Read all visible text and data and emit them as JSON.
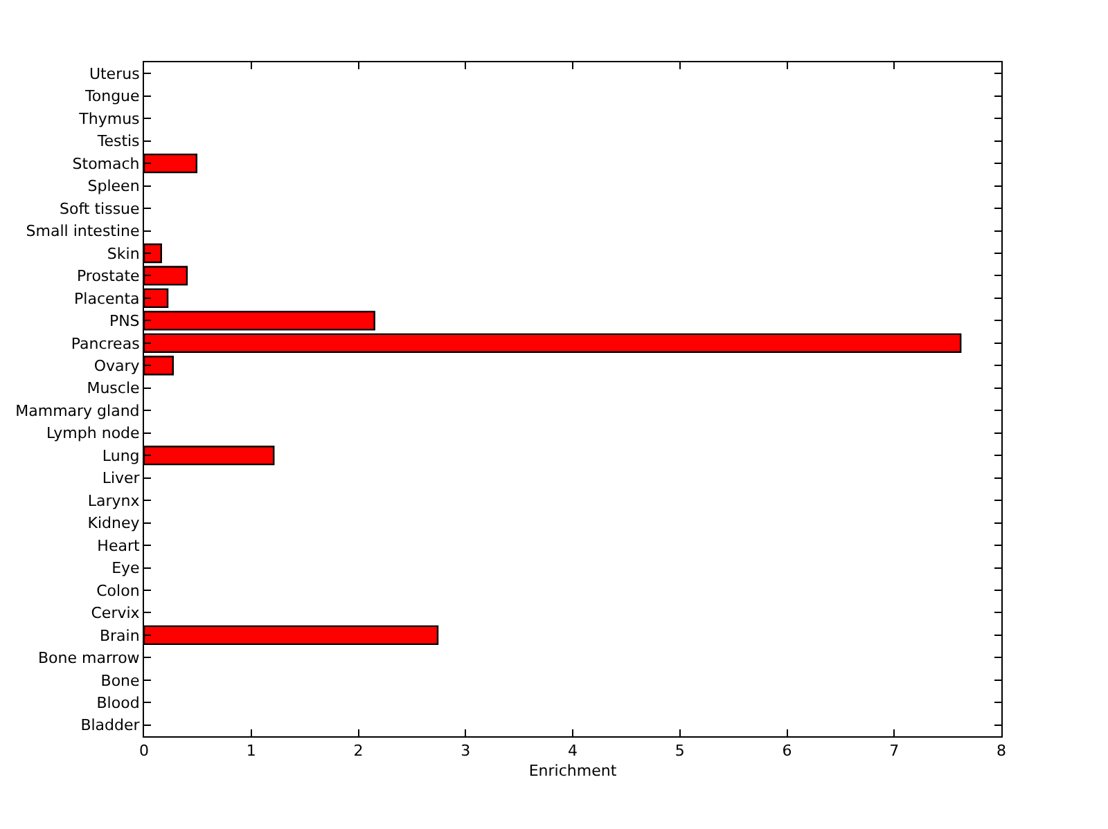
{
  "chart_data": {
    "type": "bar",
    "orientation": "horizontal",
    "xlabel": "Enrichment",
    "categories": [
      "Uterus",
      "Tongue",
      "Thymus",
      "Testis",
      "Stomach",
      "Spleen",
      "Soft tissue",
      "Small intestine",
      "Skin",
      "Prostate",
      "Placenta",
      "PNS",
      "Pancreas",
      "Ovary",
      "Muscle",
      "Mammary gland",
      "Lymph node",
      "Lung",
      "Liver",
      "Larynx",
      "Kidney",
      "Heart",
      "Eye",
      "Colon",
      "Cervix",
      "Brain",
      "Bone marrow",
      "Bone",
      "Blood",
      "Bladder"
    ],
    "values": [
      0,
      0,
      0,
      0,
      0.49,
      0,
      0,
      0,
      0.16,
      0.4,
      0.22,
      2.15,
      7.62,
      0.27,
      0,
      0,
      0,
      1.21,
      0,
      0,
      0,
      0,
      0,
      0,
      0,
      2.74,
      0,
      0,
      0,
      0
    ],
    "color": "#ff0000",
    "xlim": [
      0,
      8
    ],
    "xticks": [
      0,
      1,
      2,
      3,
      4,
      5,
      6,
      7,
      8
    ]
  }
}
